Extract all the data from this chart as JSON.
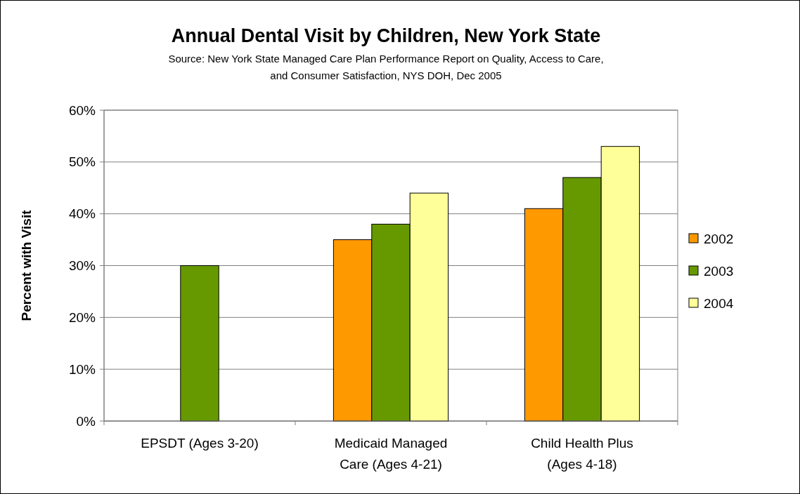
{
  "chart_data": {
    "type": "bar",
    "title": "Annual Dental Visit by Children, New York State",
    "subtitle": "Source: New York State Managed Care Plan Performance Report on Quality, Access to Care, and Consumer Satisfaction, NYS DOH, Dec 2005",
    "ylabel": "Percent with Visit",
    "categories": [
      "EPSDT (Ages 3-20)",
      "Medicaid Managed Care (Ages 4-21)",
      "Child Health Plus (Ages 4-18)"
    ],
    "series": [
      {
        "name": "2002",
        "color": "#ff9900",
        "values": [
          null,
          35,
          41
        ]
      },
      {
        "name": "2003",
        "color": "#669900",
        "values": [
          30,
          38,
          47
        ]
      },
      {
        "name": "2004",
        "color": "#ffff99",
        "values": [
          null,
          44,
          53
        ]
      }
    ],
    "ylim": [
      0,
      60
    ],
    "yticks": [
      {
        "value": 0,
        "label": "0%"
      },
      {
        "value": 10,
        "label": "10%"
      },
      {
        "value": 20,
        "label": "20%"
      },
      {
        "value": 30,
        "label": "30%"
      },
      {
        "value": 40,
        "label": "40%"
      },
      {
        "value": 50,
        "label": "50%"
      },
      {
        "value": 60,
        "label": "60%"
      }
    ],
    "grid": "y",
    "legend": "right"
  }
}
